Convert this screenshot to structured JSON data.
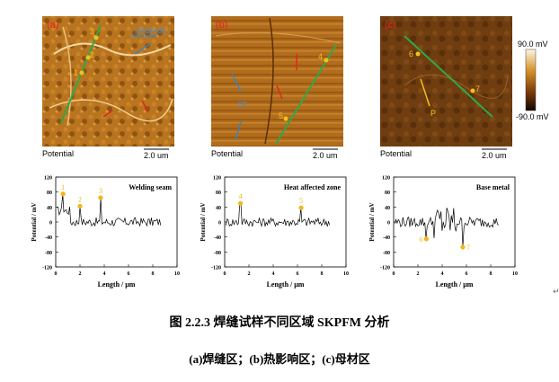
{
  "panels": [
    {
      "id": "a",
      "label": "(a)",
      "potential_label": "Potential",
      "scale_label": "2.0 um",
      "annotations": [
        "CP&Fe3C",
        "1",
        "2",
        "3"
      ]
    },
    {
      "id": "b",
      "label": "(b)",
      "potential_label": "Potential",
      "scale_label": "2.0 um",
      "annotations": [
        "CP",
        "4",
        "5"
      ]
    },
    {
      "id": "c",
      "label": "(c)",
      "potential_label": "Potential",
      "scale_label": "2.0 um",
      "annotations": [
        "6",
        "7",
        "P"
      ]
    }
  ],
  "colorbar": {
    "max_label": "90.0 mV",
    "min_label": "-90.0 mV"
  },
  "chart_data": [
    {
      "type": "line",
      "title": "Welding seam",
      "xlabel": "Length / μm",
      "ylabel": "Potential / mV",
      "xlim": [
        0,
        10
      ],
      "ylim": [
        -120,
        120
      ],
      "xticks": [
        "0",
        "2",
        "4",
        "6",
        "8",
        "10"
      ],
      "yticks": [
        "120",
        "80",
        "40",
        "0",
        "-40",
        "-80",
        "-120"
      ],
      "points": [
        {
          "label": "1",
          "x": 0.6,
          "y": 75
        },
        {
          "label": "2",
          "x": 2.0,
          "y": 42
        },
        {
          "label": "3",
          "x": 3.7,
          "y": 65
        }
      ]
    },
    {
      "type": "line",
      "title": "Heat affected zone",
      "xlabel": "Length / μm",
      "ylabel": "Potential / mV",
      "xlim": [
        0,
        10
      ],
      "ylim": [
        -120,
        120
      ],
      "xticks": [
        "0",
        "2",
        "4",
        "6",
        "8",
        "10"
      ],
      "yticks": [
        "120",
        "80",
        "40",
        "0",
        "-40",
        "-80",
        "-120"
      ],
      "points": [
        {
          "label": "4",
          "x": 1.3,
          "y": 50
        },
        {
          "label": "5",
          "x": 6.3,
          "y": 38
        }
      ]
    },
    {
      "type": "line",
      "title": "Base metal",
      "xlabel": "Length / μm",
      "ylabel": "Potential / mV",
      "xlim": [
        0,
        10
      ],
      "ylim": [
        -120,
        120
      ],
      "xticks": [
        "0",
        "2",
        "4",
        "6",
        "8",
        "10"
      ],
      "yticks": [
        "120",
        "80",
        "40",
        "0",
        "-40",
        "-80",
        "-120"
      ],
      "points": [
        {
          "label": "6",
          "x": 2.7,
          "y": -45
        },
        {
          "label": "7",
          "x": 5.7,
          "y": -67
        }
      ]
    }
  ],
  "caption": {
    "line1": "图 2.2.3 焊缝试样不同区域 SKPFM 分析",
    "line2": "(a)焊缝区；(b)热影响区；(c)母材区"
  }
}
